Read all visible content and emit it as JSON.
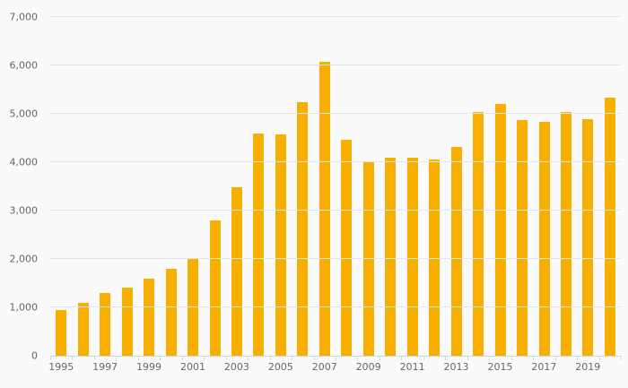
{
  "chart_data": {
    "type": "bar",
    "title": "",
    "xlabel": "",
    "ylabel": "",
    "categories": [
      1995,
      1996,
      1997,
      1998,
      1999,
      2000,
      2001,
      2002,
      2003,
      2004,
      2005,
      2006,
      2007,
      2008,
      2009,
      2010,
      2011,
      2012,
      2013,
      2014,
      2015,
      2016,
      2017,
      2018,
      2019,
      2020
    ],
    "values": [
      950,
      1100,
      1300,
      1400,
      1600,
      1800,
      2000,
      2800,
      3480,
      4590,
      4570,
      5250,
      6080,
      4470,
      4000,
      4090,
      4090,
      4060,
      4310,
      5040,
      5200,
      4870,
      4840,
      5040,
      4890,
      5340
    ],
    "ylim": [
      0,
      7000
    ],
    "y_tick_step": 1000,
    "y_tick_labels": [
      "0",
      "1,000",
      "2,000",
      "3,000",
      "4,000",
      "5,000",
      "6,000",
      "7,000"
    ],
    "x_tick_labels": [
      "1995",
      "1997",
      "1999",
      "2001",
      "2003",
      "2005",
      "2007",
      "2009",
      "2011",
      "2013",
      "2015",
      "2017",
      "2019"
    ],
    "x_label_every": 2,
    "grid": "horizontal",
    "legend": "none",
    "colors": {
      "bar": "#F9AF00",
      "grid": "#E6E6E6",
      "axis_line": "#CCD6EB",
      "label": "#666666",
      "background": "#FAFAFA"
    }
  }
}
